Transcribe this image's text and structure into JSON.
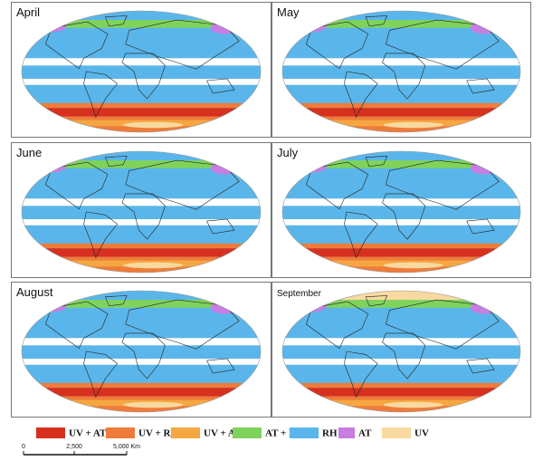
{
  "panels": [
    {
      "title": "April"
    },
    {
      "title": "May"
    },
    {
      "title": "June"
    },
    {
      "title": "July"
    },
    {
      "title": "August"
    },
    {
      "title": "September"
    }
  ],
  "legend": [
    {
      "label": "UV + AT +RH",
      "color": "#d7301f"
    },
    {
      "label": "UV + RH",
      "color": "#ef7c3a"
    },
    {
      "label": "UV + AT",
      "color": "#f5a742"
    },
    {
      "label": "AT + RH",
      "color": "#7fd35b"
    },
    {
      "label": "RH",
      "color": "#5ab6ea"
    },
    {
      "label": "AT",
      "color": "#c77de2"
    },
    {
      "label": "UV",
      "color": "#f8d9a0"
    }
  ],
  "scale_bar": {
    "labels": [
      "0",
      "2,500",
      "5,000 Km"
    ]
  }
}
